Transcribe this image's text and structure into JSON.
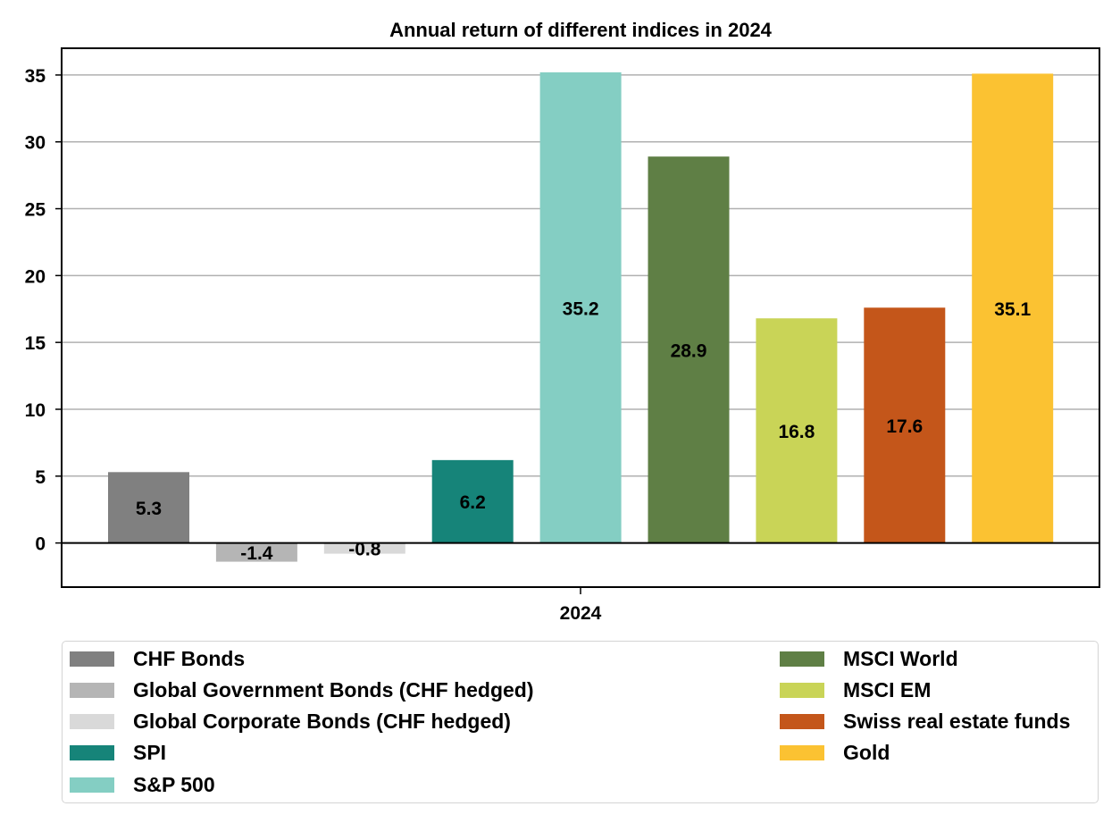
{
  "chart_data": {
    "type": "bar",
    "title": "Annual return of different indices in 2024",
    "xlabel": "",
    "ylabel": "",
    "x_tick_labels": [
      "2024"
    ],
    "ylim": [
      -3.3,
      37
    ],
    "y_ticks": [
      0,
      5,
      10,
      15,
      20,
      25,
      30,
      35
    ],
    "grid": "horizontal",
    "legend_position": "bottom",
    "series": [
      {
        "name": "CHF Bonds",
        "value": 5.3,
        "label": "5.3",
        "color": "#808080"
      },
      {
        "name": "Global Government Bonds (CHF hedged)",
        "value": -1.4,
        "label": "-1.4",
        "color": "#b5b5b5"
      },
      {
        "name": "Global Corporate Bonds (CHF hedged)",
        "value": -0.8,
        "label": "-0.8",
        "color": "#d9d9d9"
      },
      {
        "name": "SPI",
        "value": 6.2,
        "label": "6.2",
        "color": "#168479"
      },
      {
        "name": "S&P 500",
        "value": 35.2,
        "label": "35.2",
        "color": "#84cec3"
      },
      {
        "name": "MSCI World",
        "value": 28.9,
        "label": "28.9",
        "color": "#5f7f45"
      },
      {
        "name": "MSCI EM",
        "value": 16.8,
        "label": "16.8",
        "color": "#c9d457"
      },
      {
        "name": "Swiss real estate funds",
        "value": 17.6,
        "label": "17.6",
        "color": "#c4561a"
      },
      {
        "name": "Gold",
        "value": 35.1,
        "label": "35.1",
        "color": "#fbc232"
      }
    ]
  }
}
